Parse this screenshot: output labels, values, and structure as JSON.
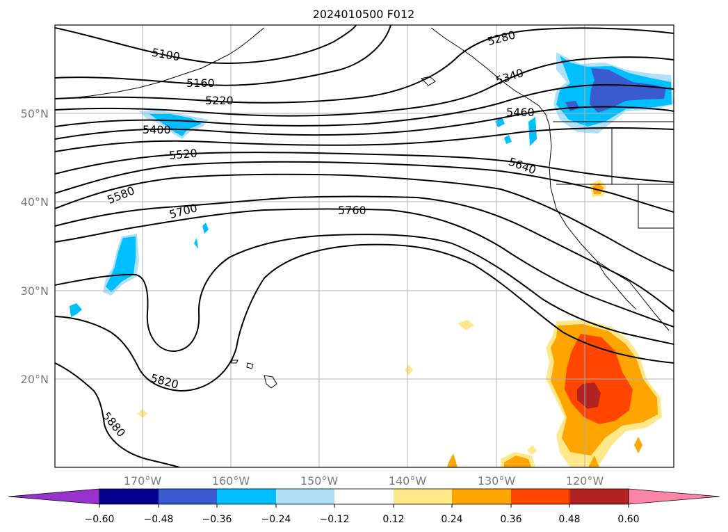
{
  "chart_data": {
    "type": "contour-map",
    "title": "2024010500 F012",
    "x_axis": {
      "ticks": [
        "170°W",
        "160°W",
        "150°W",
        "140°W",
        "130°W",
        "120°W"
      ],
      "values": [
        -170,
        -160,
        -150,
        -140,
        -130,
        -120
      ],
      "range": [
        -180,
        -110
      ]
    },
    "y_axis": {
      "ticks": [
        "20°N",
        "30°N",
        "40°N",
        "50°N"
      ],
      "values": [
        20,
        30,
        40,
        50
      ],
      "range": [
        10,
        60
      ]
    },
    "grid": true,
    "contour_levels_labeled": [
      "5100",
      "5160",
      "5220",
      "5280",
      "5340",
      "5400",
      "5460",
      "5520",
      "5580",
      "5640",
      "5700",
      "5760",
      "5820",
      "5880"
    ],
    "colorbar": {
      "orientation": "horizontal",
      "extend": "both",
      "ticks": [
        "−0.60",
        "−0.48",
        "−0.36",
        "−0.24",
        "−0.12",
        "0.12",
        "0.24",
        "0.36",
        "0.48",
        "0.60"
      ],
      "colors": [
        "#9932cc",
        "#00008b",
        "#3a5bd0",
        "#00bfff",
        "#b0e0f8",
        "#ffffff",
        "#ffe88a",
        "#ffa500",
        "#ff4500",
        "#b22222",
        "#ff85a8"
      ]
    }
  }
}
